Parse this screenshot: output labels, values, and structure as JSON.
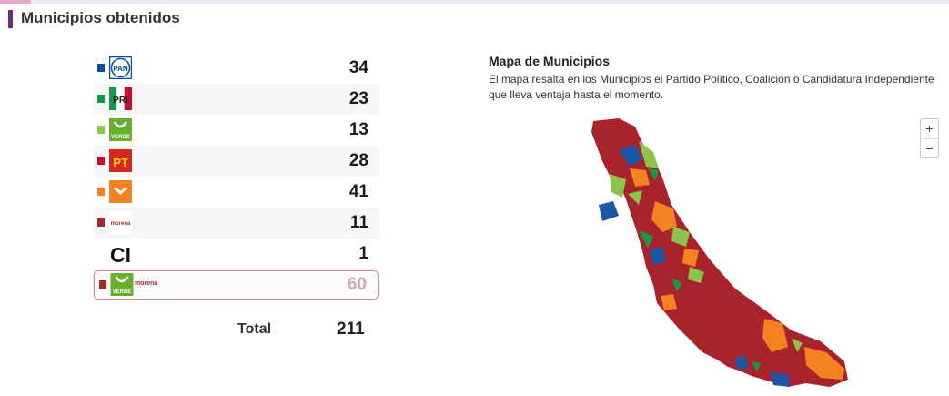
{
  "header": {
    "title": "Municipios obtenidos"
  },
  "parties": [
    {
      "name": "PAN",
      "logo_text": "PAN",
      "color": "#0d4c9c",
      "value": "34"
    },
    {
      "name": "PRI",
      "logo_text": "PRI",
      "color": "#1a9648",
      "value": "23"
    },
    {
      "name": "Verde",
      "logo_text": "VERDE",
      "color": "#8cc34a",
      "value": "13"
    },
    {
      "name": "PT",
      "logo_text": "PT",
      "color": "#c8102e",
      "value": "28"
    },
    {
      "name": "Movimiento Ciudadano",
      "logo_text": "",
      "color": "#f58220",
      "value": "41"
    },
    {
      "name": "Morena",
      "logo_text": "morena",
      "color": "#a52a2a",
      "value": "11"
    },
    {
      "name": "Candidatura Independiente",
      "logo_text": "CI",
      "color": "",
      "value": "1"
    }
  ],
  "coalition": {
    "logo_text": "VERDE",
    "morena_text": "morena",
    "color": "#a52a2a",
    "value": "60"
  },
  "total": {
    "label": "Total",
    "value": "211"
  },
  "map": {
    "title": "Mapa de Municipios",
    "description": "El mapa resalta en los Municipios el Partido Político, Coalición o Candidatura Independiente que lleva ventaja hasta el momento.",
    "zoom_in": "+",
    "zoom_out": "−"
  }
}
